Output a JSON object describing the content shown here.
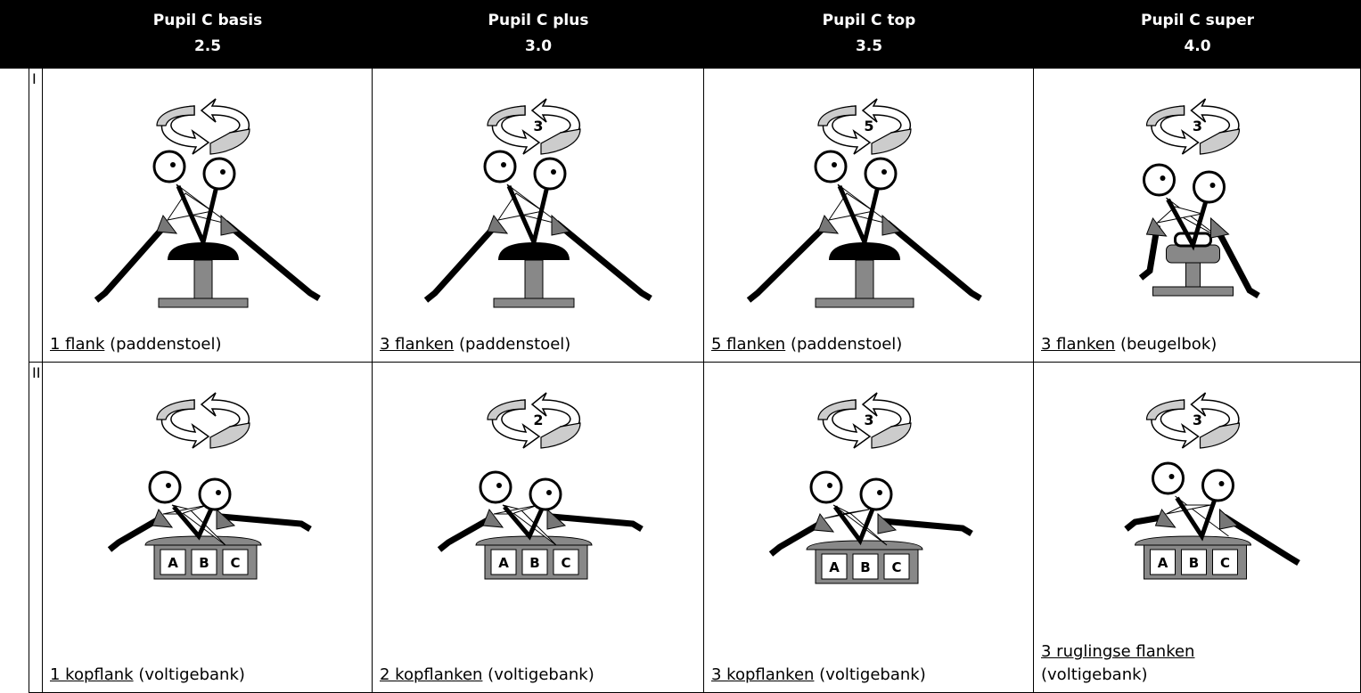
{
  "header": {
    "columns": [
      {
        "title": "Pupil C basis",
        "level": "2.5"
      },
      {
        "title": "Pupil C plus",
        "level": "3.0"
      },
      {
        "title": "Pupil C top",
        "level": "3.5"
      },
      {
        "title": "Pupil C super",
        "level": "4.0"
      }
    ]
  },
  "rows": [
    {
      "label": "I",
      "cells": [
        {
          "underlined": "1 flank",
          "rest": "(paddenstoel)"
        },
        {
          "count": "3",
          "underlined": "3 flanken",
          "rest": "(paddenstoel)"
        },
        {
          "count": "5",
          "underlined": "5 flanken",
          "rest": "(paddenstoel)"
        },
        {
          "count": "3",
          "underlined": "3 flanken",
          "rest": "(beugelbok)"
        }
      ]
    },
    {
      "label": "II",
      "cells": [
        {
          "box_labels": [
            "A",
            "B",
            "C"
          ],
          "underlined": "1 kopflank",
          "rest": "(voltigebank)"
        },
        {
          "count": "2",
          "box_labels": [
            "A",
            "B",
            "C"
          ],
          "underlined": "2 kopflanken",
          "rest": "(voltigebank)"
        },
        {
          "count": "3",
          "box_labels": [
            "A",
            "B",
            "C"
          ],
          "underlined": "3 kopflanken",
          "rest": "(voltigebank)"
        },
        {
          "count": "3",
          "box_labels": [
            "A",
            "B",
            "C"
          ],
          "underlined": "3 ruglingse flanken",
          "rest": "(voltigebank)"
        }
      ]
    }
  ]
}
